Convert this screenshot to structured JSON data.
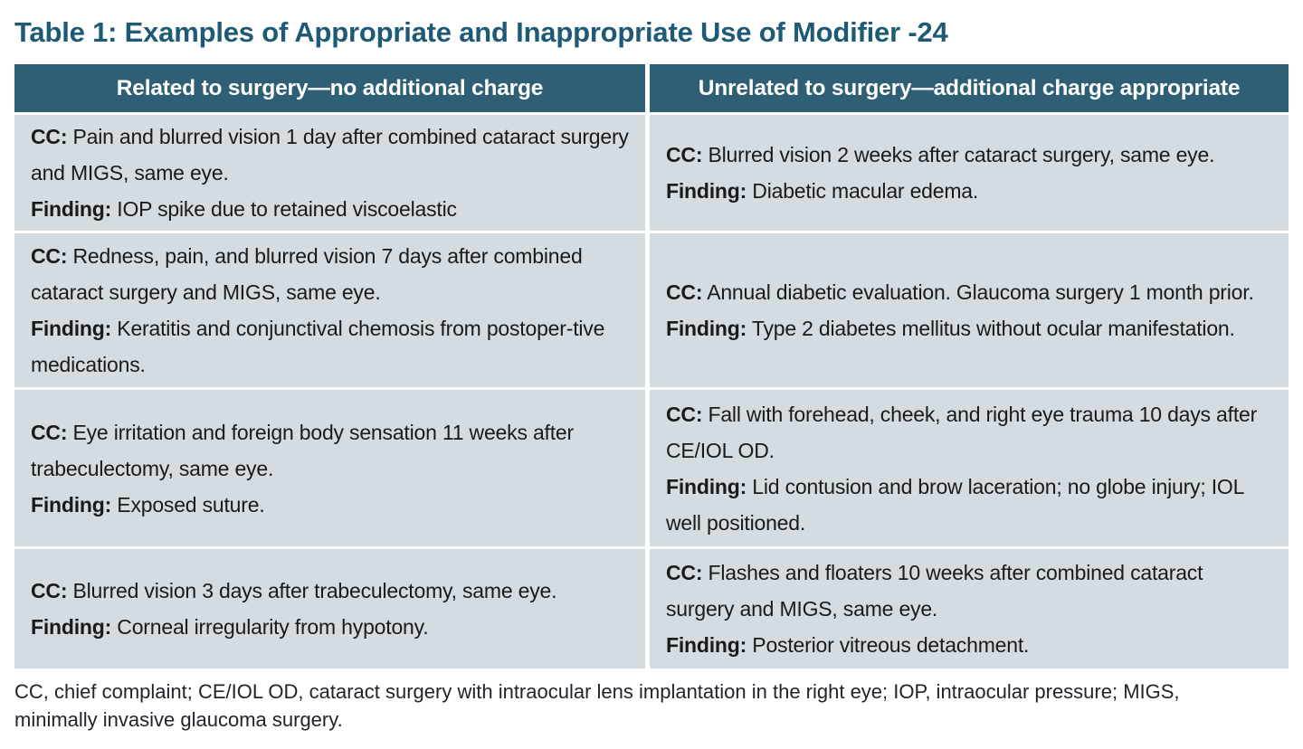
{
  "title": "Table 1: Examples of Appropriate and Inappropriate Use of Modifier -24",
  "colors": {
    "title_teal": "#1d5a75",
    "header_bg": "#2e5f75",
    "header_text": "#ffffff",
    "cell_bg": "#d4dce2",
    "body_text": "#1a1a1a"
  },
  "table": {
    "columns": [
      {
        "header": "Related to surgery—no additional charge"
      },
      {
        "header": "Unrelated to surgery—additional charge appropriate"
      }
    ],
    "rows": [
      {
        "related": {
          "cc_label": "CC:",
          "cc": "Pain and blurred vision 1 day after combined cataract surgery and MIGS, same eye.",
          "finding_label": "Finding:",
          "finding": "IOP spike due to retained viscoelastic"
        },
        "unrelated": {
          "cc_label": "CC:",
          "cc": "Blurred vision 2 weeks after cataract surgery, same eye.",
          "finding_label": "Finding:",
          "finding": "Diabetic macular edema."
        }
      },
      {
        "related": {
          "cc_label": "CC:",
          "cc": "Redness, pain, and blurred vision 7 days after combined cataract surgery and MIGS, same eye.",
          "finding_label": "Finding:",
          "finding": "Keratitis and conjunctival chemosis from postoper-tive medications."
        },
        "unrelated": {
          "cc_label": "CC:",
          "cc": "Annual diabetic evaluation. Glaucoma surgery 1 month prior.",
          "finding_label": "Finding:",
          "finding": "Type 2 diabetes mellitus without ocular manifestation."
        }
      },
      {
        "related": {
          "cc_label": "CC:",
          "cc": "Eye irritation and foreign body sensation 11 weeks after trabeculectomy, same eye.",
          "finding_label": "Finding:",
          "finding": "Exposed suture."
        },
        "unrelated": {
          "cc_label": "CC:",
          "cc": "Fall with forehead, cheek, and right eye trauma 10 days after CE/IOL OD.",
          "finding_label": "Finding:",
          "finding": "Lid contusion and brow laceration; no globe injury; IOL well positioned."
        }
      },
      {
        "related": {
          "cc_label": "CC:",
          "cc": "Blurred vision 3 days after trabeculectomy, same eye.",
          "finding_label": "Finding:",
          "finding": "Corneal irregularity from hypotony."
        },
        "unrelated": {
          "cc_label": "CC:",
          "cc": "Flashes and floaters 10 weeks after combined cataract surgery and MIGS, same eye.",
          "finding_label": "Finding:",
          "finding": "Posterior vitreous detachment."
        }
      }
    ]
  },
  "footnote": "CC, chief complaint; CE/IOL OD, cataract surgery with intraocular lens implantation in the right eye; IOP, intraocular pressure; MIGS, minimally invasive glaucoma surgery."
}
